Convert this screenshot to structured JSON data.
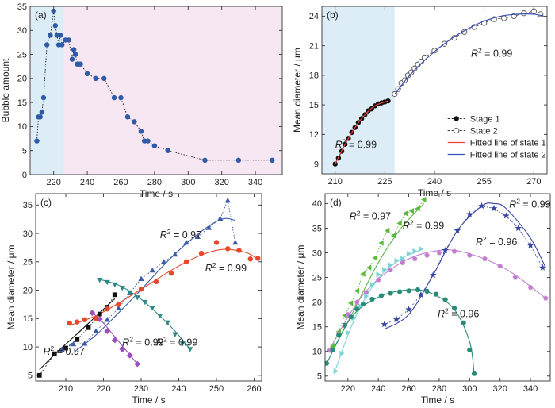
{
  "chart_data": [
    {
      "panel": "(a)",
      "type": "scatter",
      "xlabel": "Time / s",
      "ylabel": "Bubble amount",
      "xlim": [
        206,
        356
      ],
      "ylim": [
        0,
        35
      ],
      "xticks": [
        220,
        240,
        260,
        280,
        300,
        320,
        340
      ],
      "yticks": [
        0,
        5,
        10,
        15,
        20,
        25,
        30,
        35
      ],
      "regions": [
        {
          "x0": 206,
          "x1": 226,
          "color": "#dcedf8"
        },
        {
          "x0": 226,
          "x1": 356,
          "color": "#f6e7f3"
        }
      ],
      "series": [
        {
          "color": "#2e5aa8",
          "marker": "circle",
          "line": "dotted",
          "x": [
            210,
            211,
            212,
            213,
            214,
            216,
            218,
            220,
            221,
            222,
            223,
            224,
            225,
            227,
            229,
            231,
            232,
            233,
            234,
            235,
            236,
            240,
            245,
            250,
            256,
            260,
            264,
            268,
            272,
            274,
            276,
            280,
            288,
            310,
            330,
            350
          ],
          "y": [
            7,
            12,
            12,
            13,
            16,
            27,
            29,
            34,
            31,
            29,
            27,
            29,
            27,
            28,
            28,
            24,
            26,
            25,
            23,
            23,
            23,
            21,
            20,
            20,
            16,
            16,
            12,
            11,
            9,
            7,
            7,
            6,
            5,
            3,
            3,
            3
          ]
        }
      ]
    },
    {
      "panel": "(b)",
      "type": "scatter",
      "xlabel": "Time / s",
      "ylabel": "Mean diameter / μm",
      "xlim": [
        206,
        274
      ],
      "ylim": [
        8,
        25
      ],
      "xticks": [
        210,
        225,
        240,
        255,
        270
      ],
      "yticks": [
        9,
        12,
        15,
        18,
        21,
        24
      ],
      "regions": [
        {
          "x0": 206,
          "x1": 228,
          "color": "#dcedf8"
        },
        {
          "x0": 228,
          "x1": 274,
          "color": "#ffffff"
        }
      ],
      "series": [
        {
          "name": "Stage 1",
          "color": "#111111",
          "marker": "circle",
          "line": "dashed",
          "x": [
            210,
            211,
            212,
            213,
            214,
            215,
            216,
            217,
            218,
            219,
            220,
            221,
            222,
            223,
            224,
            225,
            226
          ],
          "y": [
            9.0,
            9.6,
            10.3,
            11.0,
            11.6,
            12.2,
            12.7,
            13.2,
            13.6,
            14.0,
            14.4,
            14.6,
            14.9,
            15.1,
            15.2,
            15.3,
            15.4
          ]
        },
        {
          "name": "State 2",
          "color": "#555555",
          "marker": "open-circle",
          "line": "dashed",
          "x": [
            228,
            229,
            230,
            231,
            232,
            233,
            234,
            235,
            236,
            237,
            240,
            243,
            246,
            249,
            252,
            255,
            258,
            261,
            264,
            267,
            270,
            272
          ],
          "y": [
            16.1,
            16.6,
            17.2,
            17.5,
            18.0,
            18.3,
            18.7,
            19.1,
            19.4,
            19.8,
            20.5,
            21.2,
            21.8,
            22.4,
            22.9,
            23.3,
            23.7,
            23.8,
            24.0,
            24.3,
            24.5,
            24.2
          ]
        },
        {
          "name": "Fitted line of state 1",
          "color": "#e8403a",
          "marker": "none",
          "line": "solid",
          "x": [
            210,
            213,
            216,
            219,
            222,
            225,
            226
          ],
          "y": [
            9.0,
            11.0,
            12.7,
            14.0,
            14.9,
            15.3,
            15.4
          ]
        },
        {
          "name": "Fitted line of state 2",
          "color": "#3b4fb0",
          "marker": "none",
          "line": "solid",
          "x": [
            228,
            232,
            236,
            240,
            245,
            250,
            255,
            260,
            265,
            270,
            273
          ],
          "y": [
            16.1,
            17.8,
            19.2,
            20.4,
            21.7,
            22.7,
            23.5,
            24.0,
            24.2,
            24.2,
            24.0
          ]
        }
      ],
      "annotations": [
        {
          "text": "R² = 0.99",
          "x": 210,
          "y": 10.6,
          "color": "#e8403a"
        },
        {
          "text": "R² = 0.99",
          "x": 251,
          "y": 19.9,
          "color": "#3b4fb0"
        }
      ]
    },
    {
      "panel": "(c)",
      "type": "scatter",
      "xlabel": "Time / s",
      "ylabel": "Mean diameter / μm",
      "xlim": [
        202,
        262
      ],
      "ylim": [
        4,
        37
      ],
      "xticks": [
        210,
        220,
        230,
        240,
        250,
        260
      ],
      "yticks": [
        5,
        10,
        15,
        20,
        25,
        30,
        35
      ],
      "series": [
        {
          "color": "#111111",
          "marker": "square",
          "line": "dotted",
          "x": [
            203,
            207,
            210,
            213,
            216,
            219,
            221,
            223
          ],
          "y": [
            5,
            8.8,
            9.8,
            11.3,
            13.4,
            15.8,
            17.0,
            19.2
          ]
        },
        {
          "color": "#3b5ba8",
          "marker": "triangle-up",
          "line": "dotted",
          "x": [
            209,
            212,
            215,
            218,
            221,
            224,
            227,
            230,
            233,
            236,
            239,
            242,
            245,
            248,
            251,
            253,
            255
          ],
          "y": [
            9.5,
            10.5,
            10.6,
            12.8,
            14.8,
            16.8,
            19.5,
            22.0,
            23.5,
            25.0,
            26.3,
            28.4,
            29.4,
            31.0,
            32.6,
            35.8,
            28.4
          ]
        },
        {
          "color": "#e8472a",
          "marker": "circle",
          "line": "none",
          "x": [
            211,
            213,
            215,
            218,
            221,
            224,
            230,
            234,
            238,
            242,
            246,
            250,
            253,
            256,
            259,
            261
          ],
          "y": [
            14.2,
            14.4,
            14.8,
            15.0,
            16.7,
            17.5,
            20.2,
            21.5,
            23.0,
            25.0,
            26.5,
            28.4,
            27.3,
            27.0,
            25.5,
            25.6
          ]
        },
        {
          "color": "#9b4fb8",
          "marker": "diamond",
          "line": "none",
          "x": [
            217,
            219,
            221,
            223,
            225,
            227,
            229
          ],
          "y": [
            16.0,
            14.9,
            12.8,
            11.2,
            9.6,
            8.5,
            7.0
          ]
        },
        {
          "color": "#2e8a84",
          "marker": "triangle-down",
          "line": "none",
          "x": [
            219,
            221,
            223,
            225,
            227,
            229,
            231,
            233,
            235,
            237,
            239,
            241,
            243
          ],
          "y": [
            21.8,
            21.4,
            21.0,
            20.4,
            19.6,
            18.7,
            17.9,
            16.9,
            15.5,
            14.3,
            12.2,
            10.6,
            9.6
          ]
        }
      ],
      "fits": [
        {
          "color": "#111111",
          "x": [
            203,
            208,
            213,
            218,
            223
          ],
          "y": [
            6.0,
            9.3,
            12.3,
            15.4,
            18.5
          ]
        },
        {
          "color": "#3b5ba8",
          "x": [
            212,
            218,
            224,
            230,
            236,
            242,
            248,
            252,
            255
          ],
          "y": [
            9.0,
            12.1,
            16.0,
            20.1,
            24.4,
            28.2,
            31.3,
            32.6,
            32.3
          ]
        },
        {
          "color": "#e8472a",
          "x": [
            211,
            218,
            225,
            232,
            239,
            246,
            252,
            258,
            261
          ],
          "y": [
            13.8,
            15.5,
            18.1,
            21.0,
            23.9,
            26.2,
            27.2,
            26.6,
            25.4
          ]
        },
        {
          "color": "#9b4fb8",
          "x": [
            217,
            220,
            223,
            226,
            229
          ],
          "y": [
            16.1,
            14.2,
            11.8,
            9.4,
            7.0
          ]
        },
        {
          "color": "#2e8a84",
          "x": [
            219,
            224,
            229,
            234,
            239,
            243
          ],
          "y": [
            21.9,
            20.9,
            18.9,
            16.1,
            12.8,
            9.6
          ]
        }
      ],
      "annotations": [
        {
          "text": "R² = 0.97",
          "x": 204,
          "y": 8.6,
          "color": "#111111"
        },
        {
          "text": "R² = 0.97",
          "x": 235,
          "y": 29.2,
          "color": "#3b5ba8"
        },
        {
          "text": "R² = 0.99",
          "x": 247,
          "y": 23.3,
          "color": "#e8472a"
        },
        {
          "text": "R² = 0.99",
          "x": 225,
          "y": 10.2,
          "color": "#9b4fb8"
        },
        {
          "text": "R² = 0.99",
          "x": 234,
          "y": 10.2,
          "color": "#2e8a84"
        }
      ]
    },
    {
      "panel": "(d)",
      "type": "scatter",
      "xlabel": "Time / s",
      "ylabel": "Mean diameter / μm",
      "xlim": [
        205,
        353
      ],
      "ylim": [
        4,
        42
      ],
      "xticks": [
        220,
        240,
        260,
        280,
        300,
        320,
        340
      ],
      "yticks": [
        5,
        10,
        15,
        20,
        25,
        30,
        35,
        40
      ],
      "series": [
        {
          "color": "#5ab83a",
          "marker": "triangle-left",
          "line": "dotted",
          "x": [
            210,
            214,
            218,
            222,
            226,
            230,
            234,
            238,
            242,
            246,
            250,
            254,
            258,
            262,
            266,
            270
          ],
          "y": [
            11.0,
            14.0,
            17.3,
            19.8,
            22.3,
            25.7,
            27.0,
            29.0,
            32.0,
            34.5,
            33.5,
            36.0,
            38.0,
            38.5,
            39.0,
            40.8
          ]
        },
        {
          "color": "#7ed4d4",
          "marker": "triangle-right",
          "line": "none",
          "x": [
            212,
            216,
            220,
            224,
            228,
            232,
            236,
            240,
            244,
            248,
            252,
            256,
            260,
            264,
            268
          ],
          "y": [
            6.0,
            9.6,
            13.8,
            16.8,
            19.2,
            21.2,
            23.5,
            25.6,
            26.6,
            27.5,
            28.4,
            28.8,
            29.8,
            30.3,
            30.8
          ]
        },
        {
          "color": "#3a46a0",
          "marker": "star",
          "line": "dotted",
          "x": [
            244,
            252,
            260,
            268,
            276,
            284,
            292,
            300,
            308,
            316,
            324,
            332,
            340,
            348
          ],
          "y": [
            15.5,
            16.5,
            18.5,
            21.5,
            25.5,
            30.5,
            34.5,
            37.8,
            39.5,
            39.0,
            37.5,
            35.0,
            31.5,
            27.0
          ]
        },
        {
          "color": "#c27fd2",
          "marker": "pentagon",
          "line": "none",
          "x": [
            208,
            214,
            220,
            226,
            232,
            240,
            248,
            256,
            264,
            272,
            280,
            290,
            300,
            310,
            320,
            330,
            340,
            350
          ],
          "y": [
            10.2,
            13.5,
            17.5,
            20.0,
            22.0,
            24.5,
            26.5,
            28.0,
            28.8,
            29.5,
            30.0,
            30.3,
            29.5,
            28.8,
            27.3,
            25.0,
            23.0,
            20.8
          ]
        },
        {
          "color": "#2a8c78",
          "marker": "hexagon",
          "line": "none",
          "x": [
            206,
            210,
            214,
            218,
            222,
            226,
            230,
            236,
            242,
            248,
            254,
            260,
            266,
            272,
            278,
            284,
            290,
            296,
            300,
            303
          ],
          "y": [
            7.6,
            10.3,
            13.3,
            15.3,
            17.0,
            18.6,
            19.6,
            20.6,
            21.3,
            21.8,
            22.1,
            22.3,
            22.5,
            22.2,
            21.6,
            20.5,
            18.8,
            15.8,
            10.3,
            5.5
          ]
        }
      ],
      "fits": [
        {
          "color": "#5ab83a",
          "x": [
            210,
            225,
            240,
            255,
            270
          ],
          "y": [
            10.0,
            19.0,
            28.0,
            35.0,
            40.0
          ]
        },
        {
          "color": "#7ed4d4",
          "x": [
            212,
            225,
            240,
            255,
            268
          ],
          "y": [
            6.5,
            17.0,
            24.8,
            28.8,
            30.6
          ]
        },
        {
          "color": "#3a46a0",
          "x": [
            244,
            260,
            276,
            292,
            308,
            316,
            324,
            340,
            350
          ],
          "y": [
            14.5,
            17.5,
            25.5,
            34.5,
            39.5,
            40.0,
            39.0,
            33.0,
            27.0
          ]
        },
        {
          "color": "#c27fd2",
          "x": [
            208,
            230,
            255,
            280,
            300,
            325,
            350
          ],
          "y": [
            10.5,
            21.5,
            28.0,
            30.5,
            29.8,
            26.5,
            20.8
          ]
        },
        {
          "color": "#2a8c78",
          "x": [
            206,
            222,
            240,
            260,
            275,
            290,
            300,
            303
          ],
          "y": [
            7.5,
            16.8,
            21.0,
            22.5,
            21.8,
            18.5,
            12.0,
            5.5
          ]
        }
      ],
      "annotations": [
        {
          "text": "R² = 0.97",
          "x": 221,
          "y": 36.8,
          "color": "#5ab83a"
        },
        {
          "text": "R² = 0.99",
          "x": 256,
          "y": 34.8,
          "color": "#7ed4d4"
        },
        {
          "text": "R² = 0.99",
          "x": 326,
          "y": 39.2,
          "color": "#3a46a0"
        },
        {
          "text": "R² = 0.96",
          "x": 304,
          "y": 31.5,
          "color": "#c27fd2"
        },
        {
          "text": "R² = 0.96",
          "x": 279,
          "y": 17.0,
          "color": "#2a8c78"
        }
      ]
    }
  ]
}
